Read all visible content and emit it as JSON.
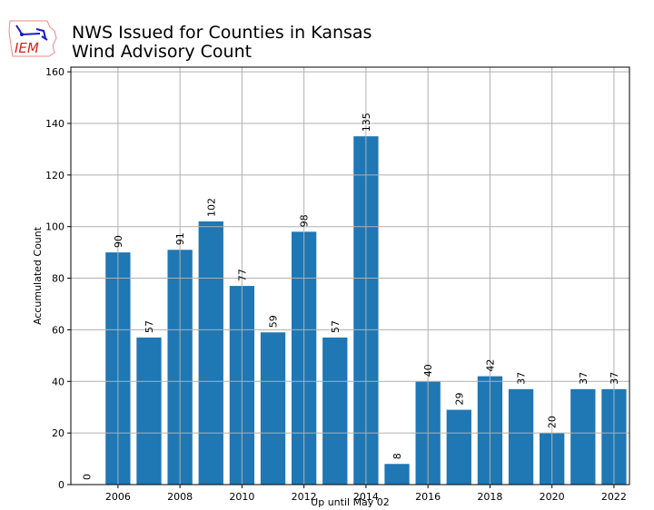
{
  "title_lines": [
    "NWS Issued for Counties in Kansas",
    "Wind Advisory Count"
  ],
  "logo_text": "IEM",
  "chart_data": {
    "type": "bar",
    "title": "NWS Issued for Counties in Kansas\nWind Advisory Count",
    "xlabel": "Up until May 02",
    "ylabel": "Accumulated Count",
    "categories": [
      2005,
      2006,
      2007,
      2008,
      2009,
      2010,
      2011,
      2012,
      2013,
      2014,
      2015,
      2016,
      2017,
      2018,
      2019,
      2020,
      2021,
      2022
    ],
    "values": [
      0,
      90,
      57,
      91,
      102,
      77,
      59,
      98,
      57,
      135,
      8,
      40,
      29,
      42,
      37,
      20,
      37,
      37
    ],
    "xticks": [
      2006,
      2008,
      2010,
      2012,
      2014,
      2016,
      2018,
      2020,
      2022
    ],
    "yticks": [
      0,
      20,
      40,
      60,
      80,
      100,
      120,
      140,
      160
    ],
    "xlim": [
      2004.48,
      2022.5
    ],
    "ylim": [
      0,
      161.8
    ],
    "grid": true,
    "bar_color": "#1f77b4",
    "data_labels": "rotated 90, above bars"
  }
}
